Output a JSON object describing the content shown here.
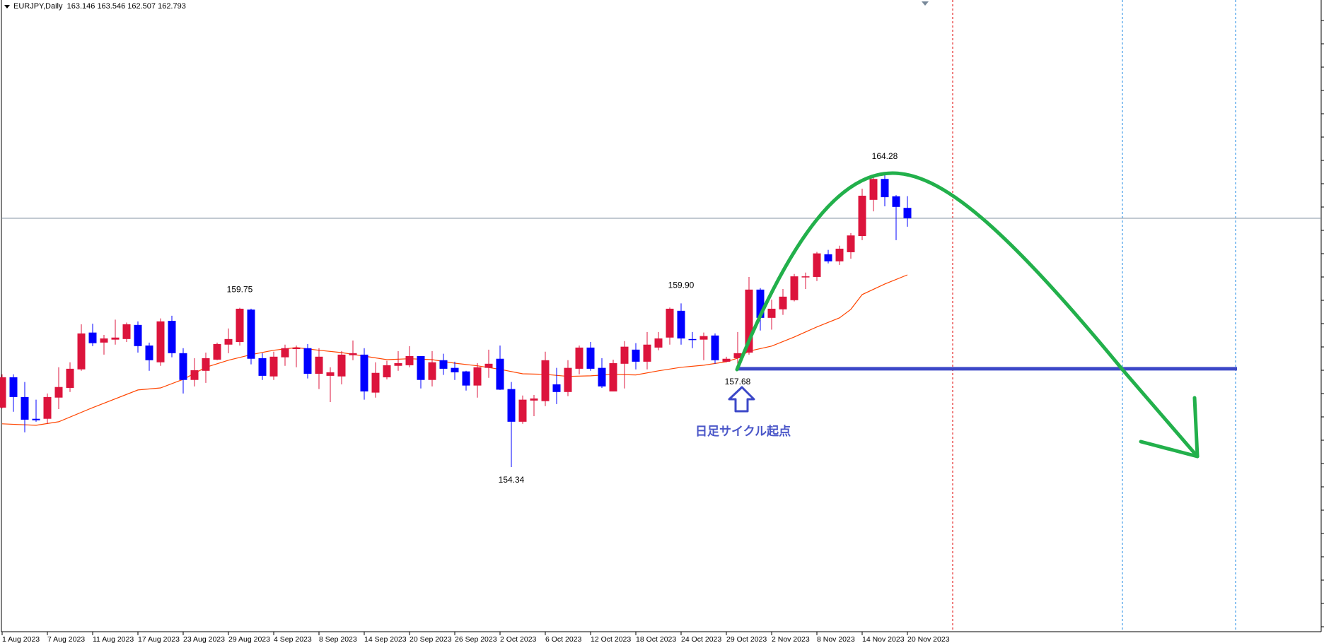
{
  "header": {
    "title": "EURJPY,Daily",
    "ohlc_readout": "163.146 163.546 162.507 162.793"
  },
  "annotation_text": "日足サイクル起点",
  "chart_data": {
    "type": "candlestick",
    "symbol": "EURJPY",
    "timeframe": "Daily",
    "colors": {
      "bull": "#dc143c",
      "bear": "#0000ff",
      "ma": "#ff4500",
      "cycle_curve": "#22b04b",
      "cycle_line": "#3c48c8",
      "price_line": "#778899",
      "period_separator": "#e00000",
      "cycle_marker": "#1e88e5"
    },
    "ohlc": [
      [
        156.36,
        157.49,
        156.34,
        157.39
      ],
      [
        157.39,
        157.49,
        156.22,
        156.72
      ],
      [
        156.72,
        157.23,
        155.52,
        155.95
      ],
      [
        155.98,
        156.63,
        155.88,
        155.93
      ],
      [
        155.98,
        156.84,
        155.81,
        156.72
      ],
      [
        156.7,
        157.73,
        156.31,
        157.06
      ],
      [
        157.03,
        157.9,
        156.89,
        157.68
      ],
      [
        157.66,
        159.19,
        157.61,
        158.88
      ],
      [
        158.91,
        159.21,
        158.45,
        158.55
      ],
      [
        158.57,
        158.83,
        158.16,
        158.71
      ],
      [
        158.67,
        159.35,
        158.5,
        158.74
      ],
      [
        158.69,
        159.25,
        158.59,
        159.19
      ],
      [
        159.17,
        159.29,
        158.23,
        158.45
      ],
      [
        158.47,
        158.57,
        157.61,
        157.97
      ],
      [
        157.9,
        159.39,
        157.78,
        159.29
      ],
      [
        159.31,
        159.48,
        158.07,
        158.21
      ],
      [
        158.21,
        158.38,
        156.84,
        157.3
      ],
      [
        157.3,
        158.04,
        157.08,
        157.63
      ],
      [
        157.61,
        158.23,
        157.2,
        158.04
      ],
      [
        157.99,
        158.57,
        157.97,
        158.52
      ],
      [
        158.5,
        159.05,
        158.21,
        158.69
      ],
      [
        158.59,
        159.75,
        158.47,
        159.72
      ],
      [
        159.69,
        159.72,
        157.83,
        158.02
      ],
      [
        158.04,
        158.21,
        157.3,
        157.44
      ],
      [
        157.42,
        158.26,
        157.3,
        158.09
      ],
      [
        158.07,
        158.5,
        157.78,
        158.38
      ],
      [
        158.35,
        158.47,
        157.73,
        158.4
      ],
      [
        158.38,
        158.52,
        157.35,
        157.51
      ],
      [
        157.51,
        158.38,
        156.99,
        158.09
      ],
      [
        157.44,
        157.73,
        156.55,
        157.56
      ],
      [
        157.42,
        158.28,
        157.15,
        158.16
      ],
      [
        158.14,
        158.64,
        157.97,
        158.21
      ],
      [
        158.16,
        158.38,
        156.63,
        156.91
      ],
      [
        156.87,
        157.9,
        156.7,
        157.54
      ],
      [
        157.39,
        157.95,
        157.32,
        157.8
      ],
      [
        157.78,
        158.28,
        157.61,
        157.87
      ],
      [
        157.8,
        158.45,
        157.73,
        158.11
      ],
      [
        158.11,
        158.11,
        157.01,
        157.3
      ],
      [
        157.3,
        158.28,
        157.08,
        157.9
      ],
      [
        157.97,
        158.19,
        157.47,
        157.68
      ],
      [
        157.71,
        157.92,
        157.3,
        157.56
      ],
      [
        157.59,
        157.61,
        156.94,
        157.11
      ],
      [
        157.11,
        157.87,
        156.7,
        157.73
      ],
      [
        157.71,
        158.33,
        157.37,
        157.85
      ],
      [
        158.02,
        158.47,
        156.96,
        156.97
      ],
      [
        156.99,
        157.23,
        154.34,
        155.88
      ],
      [
        155.88,
        156.77,
        155.81,
        156.63
      ],
      [
        156.6,
        156.79,
        156.07,
        156.67
      ],
      [
        156.58,
        158.26,
        156.41,
        157.97
      ],
      [
        157.15,
        157.71,
        156.48,
        156.89
      ],
      [
        156.89,
        157.97,
        156.75,
        157.71
      ],
      [
        157.68,
        158.47,
        157.49,
        158.4
      ],
      [
        158.4,
        158.59,
        157.61,
        157.68
      ],
      [
        157.71,
        158.04,
        157.03,
        157.08
      ],
      [
        156.91,
        157.99,
        156.91,
        157.87
      ],
      [
        157.85,
        158.62,
        157.01,
        158.43
      ],
      [
        158.33,
        158.55,
        157.66,
        157.92
      ],
      [
        157.92,
        158.93,
        157.66,
        158.5
      ],
      [
        158.4,
        158.93,
        158.31,
        158.71
      ],
      [
        158.74,
        159.76,
        158.5,
        159.72
      ],
      [
        159.65,
        159.9,
        158.5,
        158.71
      ],
      [
        158.69,
        158.93,
        158.38,
        158.67
      ],
      [
        158.67,
        158.91,
        157.97,
        158.79
      ],
      [
        158.81,
        158.88,
        157.85,
        157.97
      ],
      [
        157.92,
        158.09,
        157.9,
        158.02
      ],
      [
        158.04,
        158.93,
        157.68,
        158.21
      ],
      [
        158.23,
        160.8,
        158.16,
        160.37
      ],
      [
        160.37,
        160.42,
        158.98,
        159.41
      ],
      [
        159.41,
        160.03,
        159.01,
        159.72
      ],
      [
        159.7,
        160.39,
        159.51,
        160.13
      ],
      [
        160.01,
        160.9,
        159.97,
        160.82
      ],
      [
        160.8,
        160.95,
        160.39,
        160.82
      ],
      [
        160.8,
        161.65,
        160.66,
        161.6
      ],
      [
        161.57,
        161.72,
        161.26,
        161.33
      ],
      [
        161.33,
        161.86,
        161.21,
        161.76
      ],
      [
        161.64,
        162.29,
        161.42,
        162.21
      ],
      [
        162.19,
        163.8,
        162.05,
        163.56
      ],
      [
        163.42,
        164.18,
        163.03,
        164.13
      ],
      [
        164.13,
        164.28,
        163.2,
        163.51
      ],
      [
        163.54,
        163.58,
        162.05,
        163.18
      ],
      [
        163.146,
        163.546,
        162.507,
        162.793
      ]
    ],
    "moving_average": [
      [
        0,
        155.81
      ],
      [
        3,
        155.76
      ],
      [
        5,
        155.88
      ],
      [
        8,
        156.36
      ],
      [
        12,
        156.96
      ],
      [
        14,
        157.03
      ],
      [
        16,
        157.32
      ],
      [
        18,
        157.73
      ],
      [
        20,
        157.97
      ],
      [
        22,
        158.16
      ],
      [
        24,
        158.31
      ],
      [
        26,
        158.4
      ],
      [
        28,
        158.31
      ],
      [
        30,
        158.23
      ],
      [
        32,
        158.11
      ],
      [
        34,
        157.99
      ],
      [
        36,
        158.02
      ],
      [
        38,
        157.99
      ],
      [
        40,
        157.87
      ],
      [
        42,
        157.78
      ],
      [
        44,
        157.66
      ],
      [
        46,
        157.51
      ],
      [
        48,
        157.49
      ],
      [
        50,
        157.42
      ],
      [
        52,
        157.44
      ],
      [
        54,
        157.49
      ],
      [
        56,
        157.47
      ],
      [
        58,
        157.61
      ],
      [
        60,
        157.73
      ],
      [
        62,
        157.8
      ],
      [
        64,
        157.92
      ],
      [
        65,
        158.04
      ],
      [
        66,
        158.28
      ],
      [
        68,
        158.45
      ],
      [
        70,
        158.76
      ],
      [
        72,
        159.1
      ],
      [
        74,
        159.41
      ],
      [
        75,
        159.7
      ],
      [
        76,
        160.2
      ],
      [
        78,
        160.56
      ],
      [
        80,
        160.87
      ]
    ],
    "x_tick_labels": [
      "1 Aug 2023",
      "7 Aug 2023",
      "11 Aug 2023",
      "17 Aug 2023",
      "23 Aug 2023",
      "29 Aug 2023",
      "4 Sep 2023",
      "8 Sep 2023",
      "14 Sep 2023",
      "20 Sep 2023",
      "26 Sep 2023",
      "2 Oct 2023",
      "6 Oct 2023",
      "12 Oct 2023",
      "18 Oct 2023",
      "24 Oct 2023",
      "29 Oct 2023",
      "2 Nov 2023",
      "8 Nov 2023",
      "14 Nov 2023",
      "20 Nov 2023"
    ],
    "price_labels": [
      {
        "text": "159.75",
        "bar": 21,
        "price": 159.75,
        "side": "above"
      },
      {
        "text": "159.90",
        "bar": 60,
        "price": 159.9,
        "side": "above"
      },
      {
        "text": "164.28",
        "bar": 78,
        "price": 164.28,
        "side": "above"
      },
      {
        "text": "154.34",
        "bar": 45,
        "price": 154.34,
        "side": "below"
      },
      {
        "text": "157.68",
        "bar": 65,
        "price": 157.68,
        "side": "below"
      }
    ],
    "current_price": 162.793,
    "cycle_start_price": 157.68,
    "grid": false
  }
}
